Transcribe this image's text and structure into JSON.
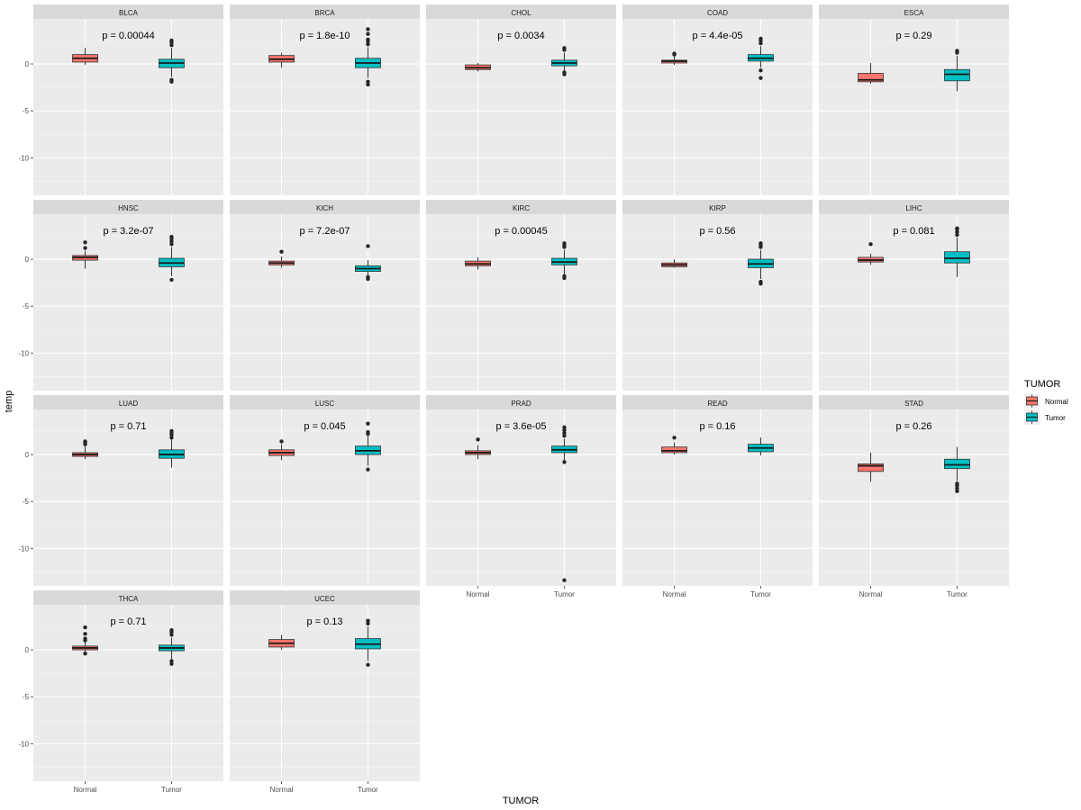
{
  "chart_data": {
    "type": "boxplot",
    "facet_layout": "5 columns x 4 rows",
    "xlabel": "TUMOR",
    "ylabel": "temp",
    "ylim": [
      -14,
      4.8
    ],
    "y_ticks": [
      0,
      -5,
      -10
    ],
    "categories": [
      "Normal",
      "Tumor"
    ],
    "legend": {
      "title": "TUMOR",
      "position": "right",
      "entries": [
        {
          "label": "Normal",
          "color": "#F8766D"
        },
        {
          "label": "Tumor",
          "color": "#00BFC4"
        }
      ]
    },
    "panels": [
      {
        "name": "BLCA",
        "p": "p = 0.00044",
        "normal": {
          "wlo": -0.1,
          "q1": 0.2,
          "med": 0.6,
          "q3": 1.0,
          "whi": 1.7,
          "out": []
        },
        "tumor": {
          "wlo": -1.4,
          "q1": -0.4,
          "med": 0.1,
          "q3": 0.5,
          "whi": 1.7,
          "out": [
            2.0,
            2.3,
            2.5,
            -1.7,
            -1.9
          ]
        }
      },
      {
        "name": "BRCA",
        "p": "p = 1.8e-10",
        "normal": {
          "wlo": -0.4,
          "q1": 0.2,
          "med": 0.5,
          "q3": 0.9,
          "whi": 1.2,
          "out": []
        },
        "tumor": {
          "wlo": -1.5,
          "q1": -0.4,
          "med": 0.1,
          "q3": 0.6,
          "whi": 1.8,
          "out": [
            2.1,
            2.4,
            2.6,
            3.2,
            3.7,
            -1.9,
            -2.2
          ]
        }
      },
      {
        "name": "CHOL",
        "p": "p = 0.0034",
        "normal": {
          "wlo": -0.8,
          "q1": -0.6,
          "med": -0.4,
          "q3": -0.1,
          "whi": 0.1,
          "out": []
        },
        "tumor": {
          "wlo": -0.7,
          "q1": -0.2,
          "med": 0.1,
          "q3": 0.4,
          "whi": 1.2,
          "out": [
            1.5,
            1.7,
            -0.9,
            -1.1
          ]
        }
      },
      {
        "name": "COAD",
        "p": "p = 4.4e-05",
        "normal": {
          "wlo": -0.1,
          "q1": 0.1,
          "med": 0.3,
          "q3": 0.4,
          "whi": 0.8,
          "out": [
            1.0,
            1.1
          ]
        },
        "tumor": {
          "wlo": -0.4,
          "q1": 0.3,
          "med": 0.6,
          "q3": 1.0,
          "whi": 1.9,
          "out": [
            2.2,
            2.5,
            2.7,
            -0.7,
            -1.5
          ]
        }
      },
      {
        "name": "ESCA",
        "p": "p = 0.29",
        "normal": {
          "wlo": -2.1,
          "q1": -1.9,
          "med": -1.7,
          "q3": -1.0,
          "whi": 0.1,
          "out": []
        },
        "tumor": {
          "wlo": -2.9,
          "q1": -1.8,
          "med": -1.1,
          "q3": -0.6,
          "whi": 0.9,
          "out": [
            1.2,
            1.4
          ]
        }
      },
      {
        "name": "HNSC",
        "p": "p = 3.2e-07",
        "normal": {
          "wlo": -1.0,
          "q1": -0.1,
          "med": 0.2,
          "q3": 0.4,
          "whi": 0.9,
          "out": [
            1.2,
            1.8
          ]
        },
        "tumor": {
          "wlo": -1.8,
          "q1": -0.8,
          "med": -0.4,
          "q3": 0.1,
          "whi": 1.3,
          "out": [
            1.6,
            1.9,
            2.2,
            2.4,
            -2.2
          ]
        }
      },
      {
        "name": "KICH",
        "p": "p = 7.2e-07",
        "normal": {
          "wlo": -0.9,
          "q1": -0.6,
          "med": -0.4,
          "q3": -0.2,
          "whi": 0.3,
          "out": [
            0.8
          ]
        },
        "tumor": {
          "wlo": -1.7,
          "q1": -1.3,
          "med": -1.0,
          "q3": -0.7,
          "whi": -0.1,
          "out": [
            1.4,
            -1.9,
            -2.1
          ]
        }
      },
      {
        "name": "KIRC",
        "p": "p = 0.00045",
        "normal": {
          "wlo": -1.1,
          "q1": -0.7,
          "med": -0.5,
          "q3": -0.2,
          "whi": 0.2,
          "out": []
        },
        "tumor": {
          "wlo": -1.6,
          "q1": -0.6,
          "med": -0.3,
          "q3": 0.1,
          "whi": 1.0,
          "out": [
            1.3,
            1.5,
            1.7,
            -1.8,
            -2.0
          ]
        }
      },
      {
        "name": "KIRP",
        "p": "p = 0.56",
        "normal": {
          "wlo": -0.9,
          "q1": -0.8,
          "med": -0.6,
          "q3": -0.4,
          "whi": 0.0,
          "out": []
        },
        "tumor": {
          "wlo": -2.1,
          "q1": -0.9,
          "med": -0.5,
          "q3": 0.0,
          "whi": 1.0,
          "out": [
            1.3,
            1.5,
            1.7,
            -2.4,
            -2.6
          ]
        }
      },
      {
        "name": "LIHC",
        "p": "p = 0.081",
        "normal": {
          "wlo": -0.6,
          "q1": -0.3,
          "med": -0.1,
          "q3": 0.2,
          "whi": 0.6,
          "out": [
            1.6
          ]
        },
        "tumor": {
          "wlo": -1.9,
          "q1": -0.4,
          "med": 0.1,
          "q3": 0.8,
          "whi": 2.3,
          "out": [
            2.6,
            2.9,
            3.2,
            3.3
          ]
        }
      },
      {
        "name": "LUAD",
        "p": "p = 0.71",
        "normal": {
          "wlo": -0.5,
          "q1": -0.2,
          "med": 0.0,
          "q3": 0.2,
          "whi": 0.9,
          "out": [
            1.1,
            1.3,
            1.4
          ]
        },
        "tumor": {
          "wlo": -1.4,
          "q1": -0.4,
          "med": 0.0,
          "q3": 0.5,
          "whi": 1.6,
          "out": [
            1.8,
            2.1,
            2.3,
            2.5
          ]
        }
      },
      {
        "name": "LUSC",
        "p": "p = 0.045",
        "normal": {
          "wlo": -0.6,
          "q1": -0.1,
          "med": 0.2,
          "q3": 0.5,
          "whi": 1.1,
          "out": [
            1.4
          ]
        },
        "tumor": {
          "wlo": -1.2,
          "q1": 0.0,
          "med": 0.4,
          "q3": 0.9,
          "whi": 2.0,
          "out": [
            2.2,
            2.4,
            3.3,
            -1.6
          ]
        }
      },
      {
        "name": "PRAD",
        "p": "p = 3.6e-05",
        "normal": {
          "wlo": -0.5,
          "q1": 0.0,
          "med": 0.2,
          "q3": 0.4,
          "whi": 1.0,
          "out": [
            1.6
          ]
        },
        "tumor": {
          "wlo": -0.6,
          "q1": 0.2,
          "med": 0.5,
          "q3": 0.9,
          "whi": 1.7,
          "out": [
            2.0,
            2.3,
            2.6,
            2.9,
            -0.8,
            -13.4
          ]
        }
      },
      {
        "name": "READ",
        "p": "p = 0.16",
        "normal": {
          "wlo": 0.0,
          "q1": 0.2,
          "med": 0.4,
          "q3": 0.8,
          "whi": 1.3,
          "out": [
            1.8
          ]
        },
        "tumor": {
          "wlo": -0.1,
          "q1": 0.3,
          "med": 0.7,
          "q3": 1.1,
          "whi": 1.8,
          "out": []
        }
      },
      {
        "name": "STAD",
        "p": "p = 0.26",
        "normal": {
          "wlo": -2.9,
          "q1": -1.8,
          "med": -1.2,
          "q3": -1.0,
          "whi": 0.2,
          "out": []
        },
        "tumor": {
          "wlo": -2.8,
          "q1": -1.5,
          "med": -1.1,
          "q3": -0.5,
          "whi": 0.8,
          "out": [
            -3.1,
            -3.3,
            -3.6,
            -3.9
          ]
        }
      },
      {
        "name": "THCA",
        "p": "p = 0.71",
        "normal": {
          "wlo": -0.3,
          "q1": 0.0,
          "med": 0.2,
          "q3": 0.4,
          "whi": 0.8,
          "out": [
            1.0,
            1.2,
            1.7,
            2.4,
            -0.4
          ]
        },
        "tumor": {
          "wlo": -1.0,
          "q1": -0.1,
          "med": 0.2,
          "q3": 0.5,
          "whi": 1.3,
          "out": [
            1.6,
            1.9,
            2.1,
            -1.2,
            -1.5
          ]
        }
      },
      {
        "name": "UCEC",
        "p": "p = 0.13",
        "normal": {
          "wlo": 0.0,
          "q1": 0.3,
          "med": 0.7,
          "q3": 1.1,
          "whi": 1.6,
          "out": []
        },
        "tumor": {
          "wlo": -1.2,
          "q1": 0.1,
          "med": 0.6,
          "q3": 1.2,
          "whi": 2.5,
          "out": [
            2.8,
            3.1,
            -1.6
          ]
        }
      }
    ]
  }
}
